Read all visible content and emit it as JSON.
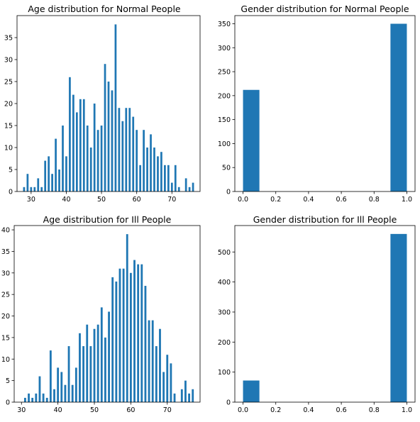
{
  "figure": {
    "background": "#ffffff",
    "bar_color": "#1f77b4"
  },
  "chart_data": [
    {
      "type": "bar",
      "title": "Age distribution for Normal People",
      "xlabel": "",
      "ylabel": "",
      "xlim": [
        26,
        78
      ],
      "ylim": [
        0,
        40
      ],
      "xticks": [
        30,
        40,
        50,
        60,
        70
      ],
      "yticks": [
        0,
        5,
        10,
        15,
        20,
        25,
        30,
        35
      ],
      "bar_width": 0.55,
      "grid": false,
      "legend": false,
      "x": [
        28,
        29,
        30,
        31,
        32,
        33,
        34,
        35,
        36,
        37,
        38,
        39,
        40,
        41,
        42,
        43,
        44,
        45,
        46,
        47,
        48,
        49,
        50,
        51,
        52,
        53,
        54,
        55,
        56,
        57,
        58,
        59,
        60,
        61,
        62,
        63,
        64,
        65,
        66,
        67,
        68,
        69,
        70,
        71,
        72,
        73,
        74,
        75,
        76
      ],
      "values": [
        1,
        4,
        1,
        1,
        3,
        1,
        7,
        8,
        4,
        12,
        5,
        15,
        8,
        26,
        22,
        18,
        21,
        21,
        15,
        10,
        20,
        14,
        15,
        29,
        25,
        23,
        38,
        19,
        16,
        19,
        19,
        17,
        14,
        6,
        14,
        10,
        13,
        10,
        8,
        9,
        6,
        6,
        2,
        6,
        1,
        0,
        3,
        1,
        2
      ]
    },
    {
      "type": "bar",
      "title": "Gender distribution for Normal People",
      "xlabel": "",
      "ylabel": "",
      "xlim": [
        -0.05,
        1.05
      ],
      "ylim": [
        0,
        367
      ],
      "xticks": [
        "0.0",
        "0.2",
        "0.4",
        "0.6",
        "0.8",
        "1.0"
      ],
      "yticks": [
        0,
        50,
        100,
        150,
        200,
        250,
        300,
        350
      ],
      "bins": [
        [
          0.0,
          0.1
        ],
        [
          0.9,
          1.0
        ]
      ],
      "values": [
        212,
        350
      ],
      "grid": false,
      "legend": false
    },
    {
      "type": "bar",
      "title": "Age distribution for Ill People",
      "xlabel": "",
      "ylabel": "",
      "xlim": [
        28,
        79
      ],
      "ylim": [
        0,
        41
      ],
      "xticks": [
        30,
        40,
        50,
        60,
        70
      ],
      "yticks": [
        0,
        5,
        10,
        15,
        20,
        25,
        30,
        35,
        40
      ],
      "bar_width": 0.55,
      "grid": false,
      "legend": false,
      "x": [
        31,
        32,
        33,
        34,
        35,
        36,
        37,
        38,
        39,
        40,
        41,
        42,
        43,
        44,
        45,
        46,
        47,
        48,
        49,
        50,
        51,
        52,
        53,
        54,
        55,
        56,
        57,
        58,
        59,
        60,
        61,
        62,
        63,
        64,
        65,
        66,
        67,
        68,
        69,
        70,
        71,
        72,
        73,
        74,
        75,
        76,
        77
      ],
      "values": [
        1,
        2,
        1,
        2,
        6,
        2,
        1,
        12,
        3,
        8,
        7,
        4,
        13,
        4,
        8,
        16,
        13,
        18,
        13,
        17,
        18,
        22,
        15,
        21,
        29,
        28,
        31,
        31,
        39,
        30,
        33,
        32,
        32,
        27,
        19,
        19,
        13,
        17,
        7,
        11,
        9,
        2,
        0,
        3,
        5,
        2,
        3
      ]
    },
    {
      "type": "bar",
      "title": "Gender distribution for Ill People",
      "xlabel": "",
      "ylabel": "",
      "xlim": [
        -0.05,
        1.05
      ],
      "ylim": [
        0,
        588
      ],
      "xticks": [
        "0.0",
        "0.2",
        "0.4",
        "0.6",
        "0.8",
        "1.0"
      ],
      "yticks": [
        0,
        100,
        200,
        300,
        400,
        500
      ],
      "bins": [
        [
          0.0,
          0.1
        ],
        [
          0.9,
          1.0
        ]
      ],
      "values": [
        72,
        560
      ],
      "grid": false,
      "legend": false
    }
  ]
}
